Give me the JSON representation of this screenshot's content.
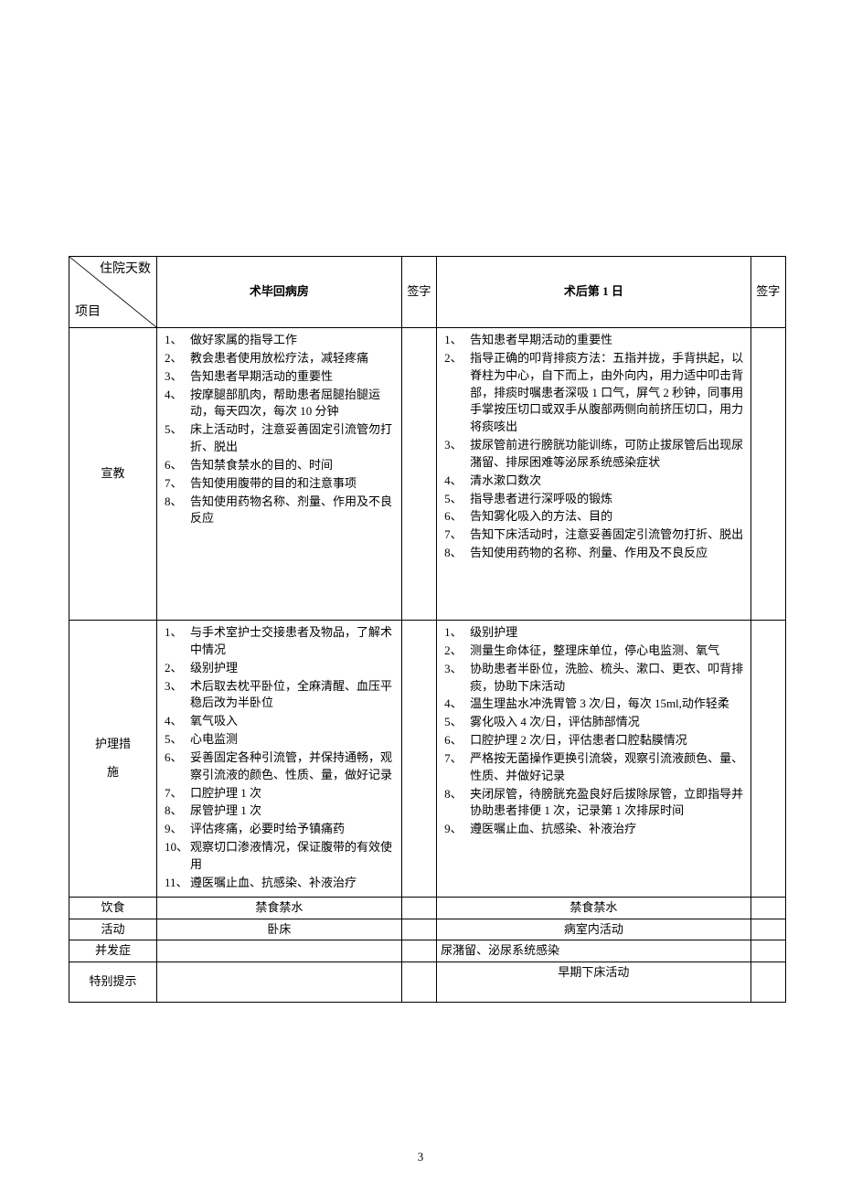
{
  "page_number": "3",
  "header": {
    "diag_top": "住院天数",
    "diag_bottom": "项目",
    "day_a": "术毕回病房",
    "day_b": "术后第 1 日",
    "sign": "签字"
  },
  "labels": {
    "edu": "宣教",
    "care_l1": "护理措",
    "care_l2": "施",
    "diet": "饮食",
    "activity": "活动",
    "complication": "并发症",
    "special": "特别提示"
  },
  "edu_a": [
    "做好家属的指导工作",
    "教会患者使用放松疗法，减轻疼痛",
    "告知患者早期活动的重要性",
    "按摩腿部肌肉，帮助患者屈腿抬腿运动，每天四次，每次 10 分钟",
    "床上活动时，注意妥善固定引流管勿打折、脱出",
    "告知禁食禁水的目的、时间",
    "告知使用腹带的目的和注意事项",
    "告知使用药物名称、剂量、作用及不良反应"
  ],
  "edu_b": [
    "告知患者早期活动的重要性",
    "指导正确的叩背排痰方法：五指并拢，手背拱起，以脊柱为中心，自下而上，由外向内，用力适中叩击背部，排痰时嘱患者深吸 1 口气，屏气 2 秒钟，同事用手掌按压切口或双手从腹部两侧向前挤压切口，用力将痰咳出",
    "拔尿管前进行膀胱功能训练，可防止拔尿管后出现尿潴留、排尿困难等泌尿系统感染症状",
    "清水漱口数次",
    "指导患者进行深呼吸的锻炼",
    "告知雾化吸入的方法、目的",
    "告知下床活动时，注意妥善固定引流管勿打折、脱出",
    "告知使用药物的名称、剂量、作用及不良反应"
  ],
  "care_a": [
    "与手术室护士交接患者及物品，了解术中情况",
    "级别护理",
    "术后取去枕平卧位，全麻清醒、血压平稳后改为半卧位",
    "氧气吸入",
    "心电监测",
    "妥善固定各种引流管，并保持通畅，观察引流液的颜色、性质、量，做好记录",
    "口腔护理 1 次",
    "尿管护理 1 次",
    "评估疼痛，必要时给予镇痛药",
    "观察切口渗液情况，保证腹带的有效使用",
    "遵医嘱止血、抗感染、补液治疗"
  ],
  "care_b": [
    "级别护理",
    "测量生命体征，整理床单位，停心电监测、氧气",
    "协助患者半卧位，洗脸、梳头、漱口、更衣、叩背排痰，协助下床活动",
    "温生理盐水冲洗胃管 3 次/日，每次 15ml,动作轻柔",
    "雾化吸入 4 次/日，评估肺部情况",
    "口腔护理 2 次/日，评估患者口腔黏膜情况",
    "严格按无菌操作更换引流袋，观察引流液颜色、量、性质、并做好记录",
    "夹闭尿管，待膀胱充盈良好后拔除尿管，立即指导并协助患者排便 1 次，记录第 1 次排尿时间",
    "遵医嘱止血、抗感染、补液治疗"
  ],
  "diet_a": "禁食禁水",
  "diet_b": "禁食禁水",
  "activity_a": "卧床",
  "activity_b": "病室内活动",
  "complication_a": "",
  "complication_b": "尿潴留、泌尿系统感染",
  "special_a": "",
  "special_b": "早期下床活动"
}
